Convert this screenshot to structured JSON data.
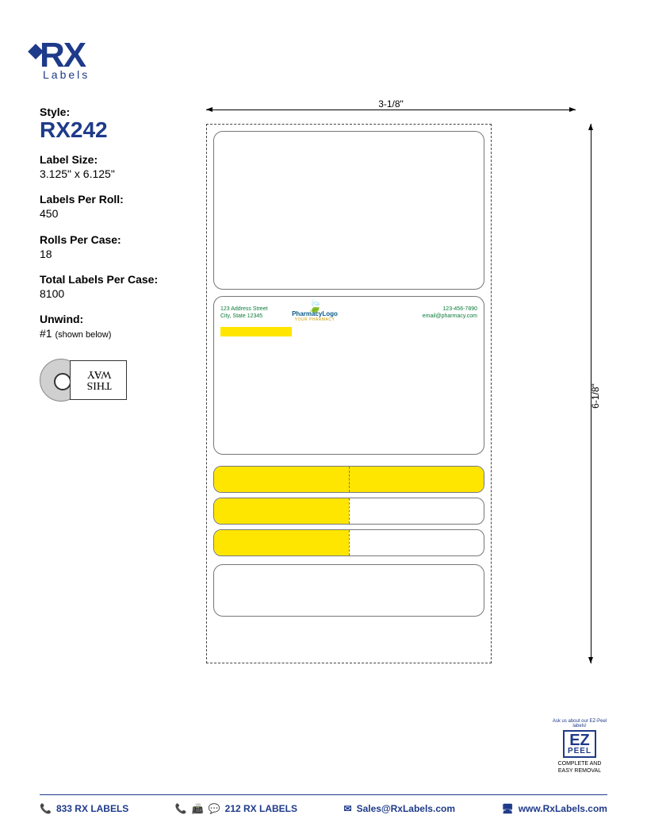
{
  "logo": {
    "main": "RX",
    "sub": "Labels"
  },
  "specs": {
    "style_label": "Style:",
    "style_value": "RX242",
    "size_label": "Label Size:",
    "size_value": "3.125\" x 6.125\"",
    "lpr_label": "Labels Per Roll:",
    "lpr_value": "450",
    "rpc_label": "Rolls Per Case:",
    "rpc_value": "18",
    "tlpc_label": "Total Labels Per Case:",
    "tlpc_value": "8100",
    "unwind_label": "Unwind:",
    "unwind_value": "#1 ",
    "unwind_note": "(shown below)"
  },
  "roll_text": "THIS WAY",
  "diagram": {
    "width_dim": "3-1/8\"",
    "height_dim": "6-1/8\"",
    "address_line1": "123 Address Street",
    "address_line2": "City, State 12345",
    "logo_name": "PharmacyLogo",
    "logo_sub": "YOUR PHARMACY",
    "phone": "123-456-7890",
    "email": "email@pharmacy.com",
    "colors": {
      "yellow": "#ffe600",
      "outline": "#444444",
      "pharmacy_green": "#0a7a3a"
    }
  },
  "ez": {
    "arc": "Ask us about our EZ-Peel labels!",
    "big": "EZ",
    "small": "PEEL",
    "caption": "COMPLETE AND EASY REMOVAL"
  },
  "footer": {
    "phone1": "833 RX LABELS",
    "phone2": "212 RX LABELS",
    "email": "Sales@RxLabels.com",
    "web": "www.RxLabels.com"
  }
}
